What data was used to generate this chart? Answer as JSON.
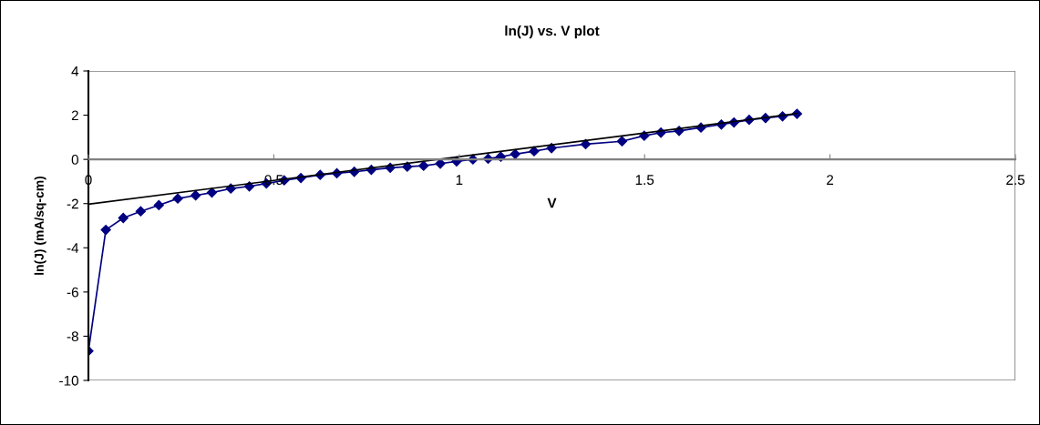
{
  "chart_data": {
    "type": "line",
    "title": "ln(J) vs. V plot",
    "xlabel": "V",
    "ylabel": "ln(J) (mA/sq-cm)",
    "xlim": [
      0,
      2.5
    ],
    "xticks": [
      0,
      0.5,
      1,
      1.5,
      2,
      2.5
    ],
    "ylim": [
      -10,
      4
    ],
    "yticks": [
      -10,
      -8,
      -6,
      -4,
      -2,
      0,
      2,
      4
    ],
    "grid": false,
    "legend": false,
    "marker": "diamond",
    "line_style": "solid",
    "series": [
      {
        "color": "#000080",
        "x": [
          0,
          0.047,
          0.094,
          0.141,
          0.19,
          0.241,
          0.289,
          0.333,
          0.384,
          0.434,
          0.48,
          0.528,
          0.573,
          0.625,
          0.67,
          0.717,
          0.763,
          0.814,
          0.86,
          0.904,
          0.949,
          0.993,
          1.037,
          1.078,
          1.112,
          1.151,
          1.202,
          1.249,
          1.341,
          1.439,
          1.499,
          1.544,
          1.593,
          1.652,
          1.707,
          1.741,
          1.782,
          1.826,
          1.872,
          1.911
        ],
        "values": [
          -8.67,
          -3.19,
          -2.65,
          -2.35,
          -2.07,
          -1.77,
          -1.63,
          -1.5,
          -1.32,
          -1.22,
          -1.09,
          -0.95,
          -0.84,
          -0.7,
          -0.63,
          -0.56,
          -0.47,
          -0.38,
          -0.33,
          -0.29,
          -0.19,
          -0.09,
          0,
          0.03,
          0.12,
          0.24,
          0.37,
          0.51,
          0.69,
          0.82,
          1.07,
          1.21,
          1.29,
          1.44,
          1.58,
          1.67,
          1.79,
          1.87,
          1.95,
          2.06
        ]
      },
      {
        "color": "#000000",
        "marker": "none",
        "x": [
          0,
          1.911
        ],
        "values": [
          -2.03,
          2.08
        ]
      }
    ]
  }
}
